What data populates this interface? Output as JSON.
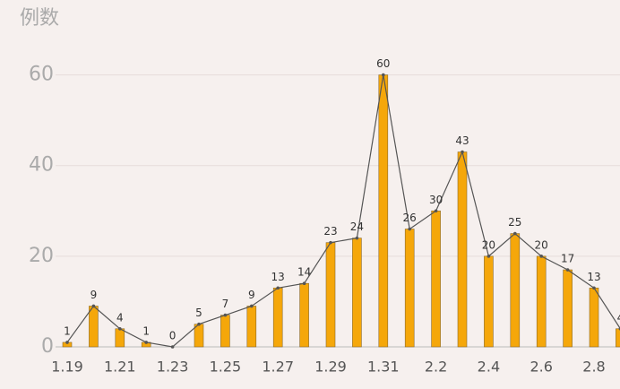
{
  "chart_data": {
    "type": "bar-line",
    "title": "例数",
    "categories": [
      "1.19",
      null,
      "1.21",
      null,
      "1.23",
      null,
      "1.25",
      null,
      "1.27",
      null,
      "1.29",
      null,
      "1.31",
      null,
      "2.2",
      null,
      "2.4",
      null,
      "2.6",
      null,
      "2.8",
      null
    ],
    "values": [
      1,
      9,
      4,
      1,
      0,
      5,
      7,
      9,
      13,
      14,
      23,
      24,
      60,
      26,
      30,
      43,
      20,
      25,
      20,
      17,
      13,
      4
    ],
    "color": "#f5a70a",
    "line_color": "#555555",
    "ylim": [
      0,
      70
    ],
    "yticks": [
      0,
      20,
      40,
      60
    ],
    "grid": true
  }
}
